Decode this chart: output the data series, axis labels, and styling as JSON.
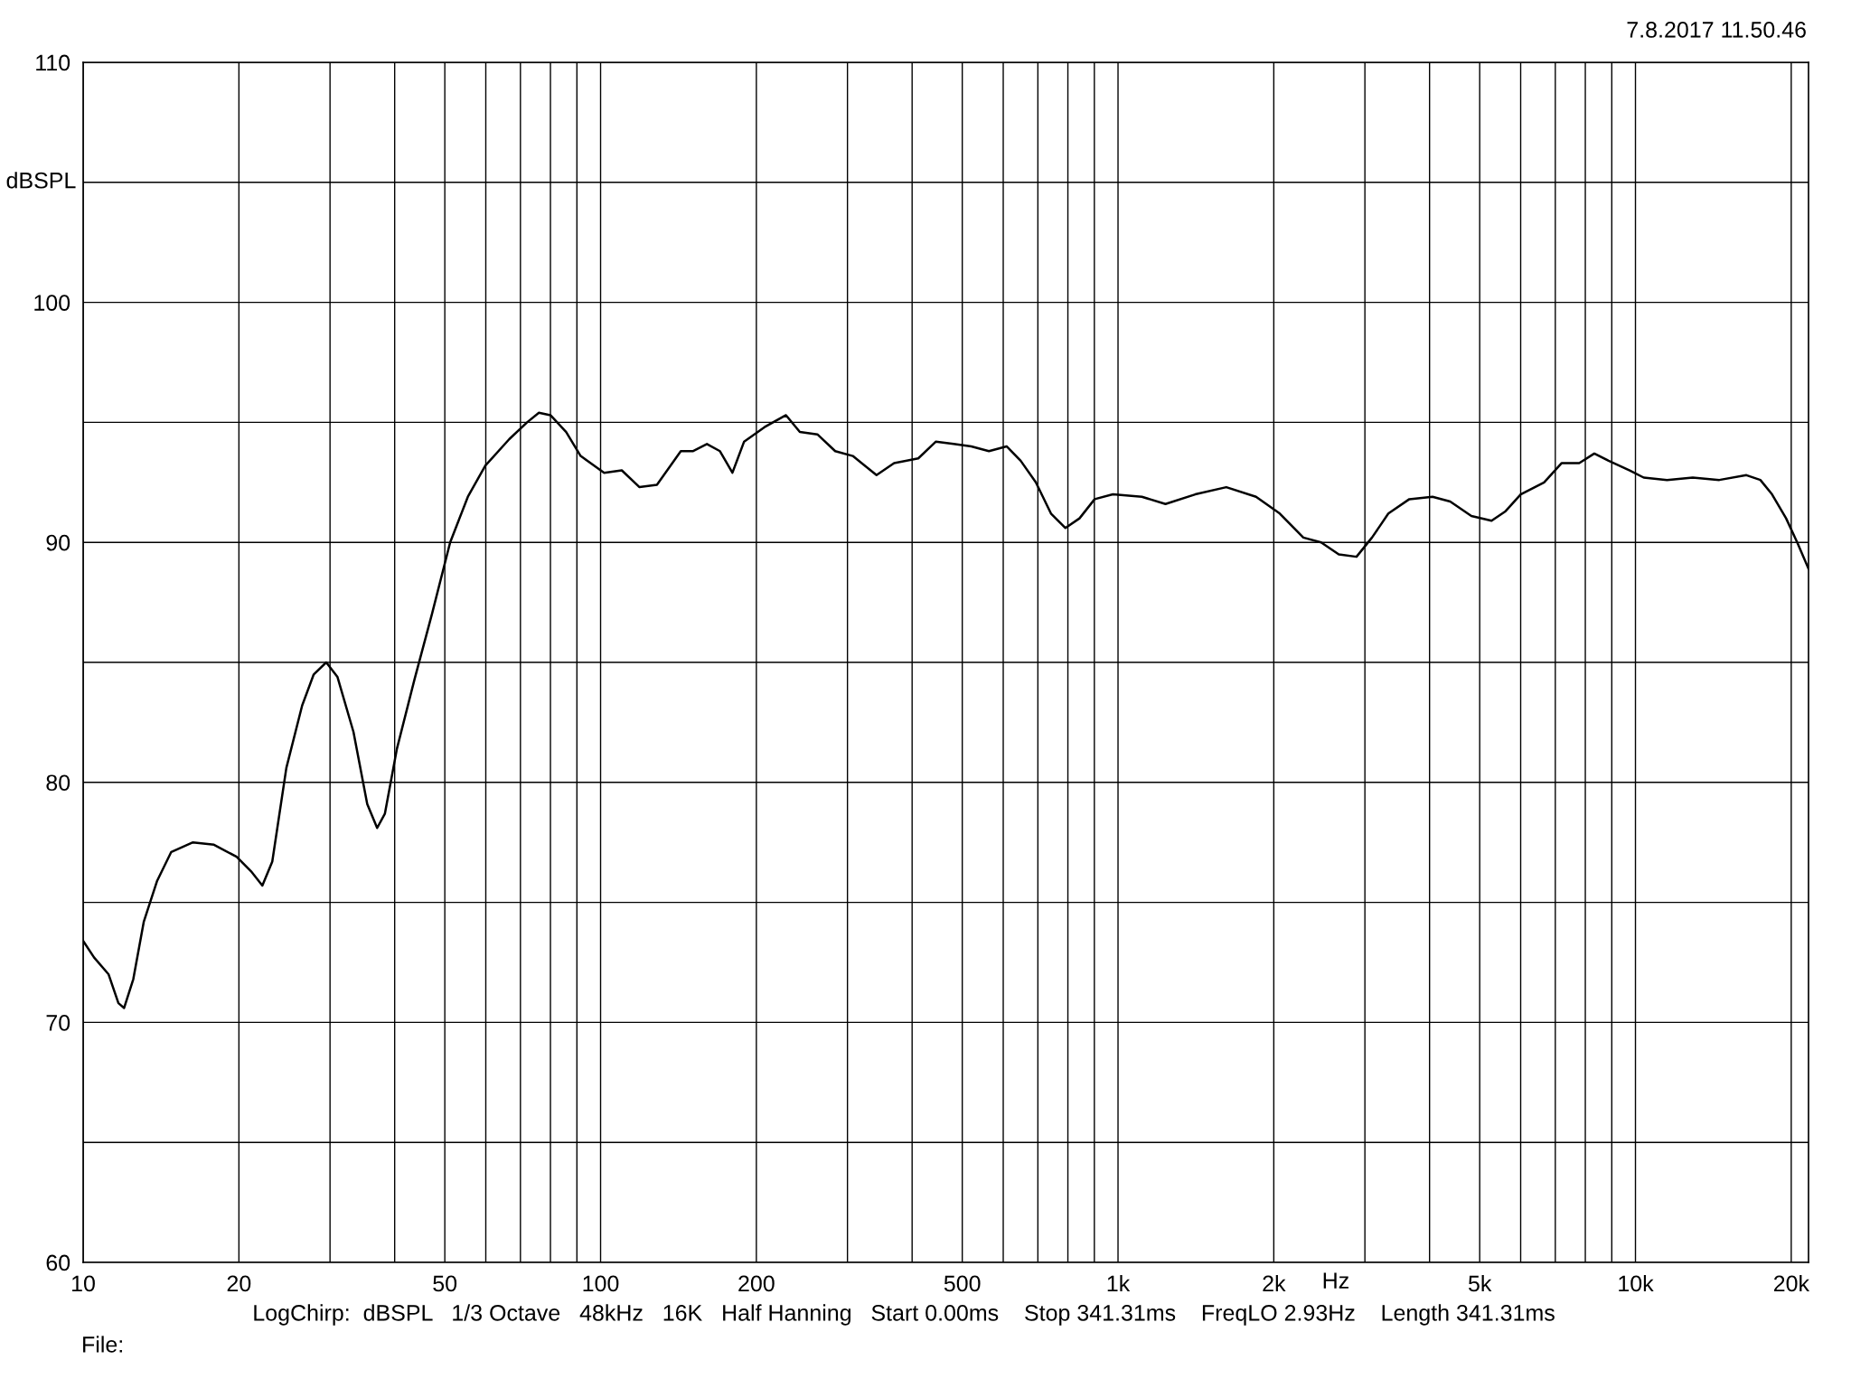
{
  "chart_data": {
    "type": "line",
    "xlabel": "Hz",
    "ylabel": "dBSPL",
    "log": "x",
    "grid": true,
    "marker": "none",
    "line_style": "solid",
    "xlim": [
      10,
      21600
    ],
    "ylim": [
      60,
      110
    ],
    "xticks": [
      10,
      20,
      {
        "value": 30,
        "label": null
      },
      {
        "value": 40,
        "label": null
      },
      50,
      {
        "value": 60,
        "label": null
      },
      {
        "value": 70,
        "label": null
      },
      {
        "value": 80,
        "label": null
      },
      {
        "value": 90,
        "label": null
      },
      100,
      200,
      {
        "value": 300,
        "label": null
      },
      {
        "value": 400,
        "label": null
      },
      500,
      {
        "value": 600,
        "label": null
      },
      {
        "value": 700,
        "label": null
      },
      {
        "value": 800,
        "label": null
      },
      {
        "value": 900,
        "label": null
      },
      {
        "value": 1000,
        "label": "1k"
      },
      {
        "value": 2000,
        "label": "2k"
      },
      {
        "value": 3000,
        "label": null
      },
      {
        "value": 4000,
        "label": null
      },
      {
        "value": 5000,
        "label": "5k"
      },
      {
        "value": 6000,
        "label": null
      },
      {
        "value": 7000,
        "label": null
      },
      {
        "value": 8000,
        "label": null
      },
      {
        "value": 9000,
        "label": null
      },
      {
        "value": 10000,
        "label": "10k"
      },
      {
        "value": 20000,
        "label": "20k"
      }
    ],
    "yticks": [
      60,
      {
        "value": 65,
        "label": null
      },
      70,
      {
        "value": 75,
        "label": null
      },
      80,
      {
        "value": 85,
        "label": null
      },
      90,
      {
        "value": 95,
        "label": null
      },
      100,
      {
        "value": 105,
        "label": null
      },
      110
    ],
    "annotations": [
      "7.8.2017 11.50.46",
      "LogChirp:  dBSPL   1/3 Octave   48kHz   16K   Half Hanning   Start 0.00ms    Stop 341.31ms    FreqLO 2.93Hz    Length 341.31ms",
      "File:"
    ],
    "series": [
      {
        "color": "#000000",
        "x": [
          10,
          10.5,
          11.2,
          11.7,
          12.0,
          12.5,
          13.1,
          13.9,
          14.8,
          16.3,
          17.9,
          19.8,
          21.1,
          22.2,
          23.2,
          24.7,
          26.5,
          27.9,
          29.5,
          31.0,
          33.3,
          35.4,
          37.0,
          38.3,
          40.4,
          43.7,
          47.2,
          51.2,
          55.4,
          59.9,
          66.6,
          72.1,
          76.0,
          80.0,
          85.8,
          91.5,
          101.6,
          109.9,
          118.9,
          128.5,
          142.9,
          150.7,
          160.5,
          170.1,
          179.8,
          189.4,
          207.4,
          228.2,
          242.7,
          262.4,
          284.1,
          307.2,
          341.4,
          369.2,
          411.1,
          444.7,
          481.1,
          520.5,
          563.0,
          609.1,
          648.4,
          693.7,
          742.0,
          791.5,
          842.5,
          901.2,
          977.4,
          1112,
          1235,
          1410,
          1619,
          1848,
          2054,
          2281,
          2469,
          2671,
          2890,
          3096,
          3330,
          3656,
          4053,
          4385,
          4818,
          5271,
          5611,
          6001,
          6659,
          7196,
          7785,
          8327,
          8873,
          9747,
          10373,
          11508,
          12903,
          14523,
          16385,
          17432,
          18363,
          19549,
          20541,
          21600
        ],
        "values": [
          73.4,
          72.7,
          72.0,
          70.8,
          70.6,
          71.8,
          74.2,
          75.9,
          77.1,
          77.5,
          77.4,
          76.9,
          76.3,
          75.7,
          76.7,
          80.6,
          83.2,
          84.5,
          85.0,
          84.4,
          82.1,
          79.1,
          78.1,
          78.7,
          81.4,
          84.3,
          87.0,
          90.0,
          91.9,
          93.2,
          94.3,
          95.0,
          95.4,
          95.3,
          94.6,
          93.6,
          92.9,
          93.0,
          92.3,
          92.4,
          93.8,
          93.8,
          94.1,
          93.8,
          92.9,
          94.2,
          94.8,
          95.3,
          94.6,
          94.5,
          93.8,
          93.6,
          92.8,
          93.3,
          93.5,
          94.2,
          94.1,
          94.0,
          93.8,
          94.0,
          93.4,
          92.5,
          91.2,
          90.6,
          91.0,
          91.8,
          92.0,
          91.9,
          91.6,
          92.0,
          92.3,
          91.9,
          91.2,
          90.2,
          90.0,
          89.5,
          89.4,
          90.2,
          91.2,
          91.8,
          91.9,
          91.7,
          91.1,
          90.9,
          91.3,
          92.0,
          92.5,
          93.3,
          93.3,
          93.7,
          93.4,
          93.0,
          92.7,
          92.6,
          92.7,
          92.6,
          92.8,
          92.6,
          92.0,
          91.0,
          90.0,
          88.9
        ]
      }
    ]
  }
}
